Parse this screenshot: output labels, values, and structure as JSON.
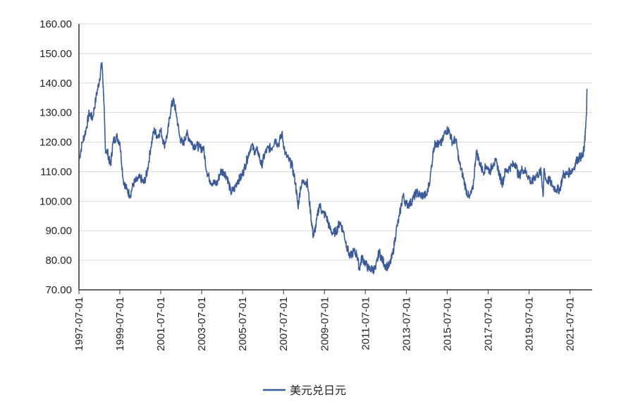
{
  "chart_data": {
    "type": "line",
    "xlabel": "",
    "ylabel": "",
    "ylim": [
      70,
      160
    ],
    "y_ticks": [
      "70.00",
      "80.00",
      "90.00",
      "100.00",
      "110.00",
      "120.00",
      "130.00",
      "140.00",
      "150.00",
      "160.00"
    ],
    "x_ticks": [
      "1997-07-01",
      "1999-07-01",
      "2001-07-01",
      "2003-07-01",
      "2005-07-01",
      "2007-07-01",
      "2009-07-01",
      "2011-07-01",
      "2013-07-01",
      "2015-07-01",
      "2017-07-01",
      "2019-07-01",
      "2021-07-01"
    ],
    "xlim": [
      "1997-07-01",
      "2022-05-01"
    ],
    "grid": "horizontal",
    "legend_position": "bottom",
    "series": [
      {
        "name": "美元兑日元",
        "color": "#3a5a9a",
        "points": [
          [
            "1997-07-01",
            114
          ],
          [
            "1997-09-01",
            120
          ],
          [
            "1997-11-01",
            124
          ],
          [
            "1998-01-01",
            130
          ],
          [
            "1998-03-01",
            128
          ],
          [
            "1998-05-01",
            135
          ],
          [
            "1998-07-01",
            141
          ],
          [
            "1998-08-15",
            147
          ],
          [
            "1998-09-15",
            136
          ],
          [
            "1998-10-15",
            118
          ],
          [
            "1998-12-01",
            116
          ],
          [
            "1999-01-15",
            112
          ],
          [
            "1999-03-01",
            120
          ],
          [
            "1999-05-01",
            122
          ],
          [
            "1999-07-01",
            120
          ],
          [
            "1999-09-01",
            107
          ],
          [
            "1999-11-01",
            104
          ],
          [
            "2000-01-01",
            102
          ],
          [
            "2000-03-01",
            106
          ],
          [
            "2000-05-01",
            107
          ],
          [
            "2000-07-01",
            108
          ],
          [
            "2000-09-01",
            106
          ],
          [
            "2000-11-01",
            110
          ],
          [
            "2001-01-01",
            118
          ],
          [
            "2001-03-01",
            124
          ],
          [
            "2001-05-01",
            122
          ],
          [
            "2001-07-01",
            124
          ],
          [
            "2001-09-01",
            119
          ],
          [
            "2001-11-01",
            123
          ],
          [
            "2002-01-01",
            132
          ],
          [
            "2002-02-15",
            134
          ],
          [
            "2002-04-01",
            130
          ],
          [
            "2002-06-01",
            122
          ],
          [
            "2002-08-01",
            119
          ],
          [
            "2002-10-01",
            123
          ],
          [
            "2002-12-01",
            121
          ],
          [
            "2003-02-01",
            119
          ],
          [
            "2003-04-01",
            119
          ],
          [
            "2003-06-01",
            118
          ],
          [
            "2003-08-01",
            118
          ],
          [
            "2003-10-01",
            110
          ],
          [
            "2003-12-01",
            107
          ],
          [
            "2004-02-01",
            106
          ],
          [
            "2004-04-01",
            106
          ],
          [
            "2004-06-01",
            110
          ],
          [
            "2004-08-01",
            110
          ],
          [
            "2004-10-01",
            108
          ],
          [
            "2004-12-01",
            103
          ],
          [
            "2005-02-01",
            104
          ],
          [
            "2005-04-01",
            107
          ],
          [
            "2005-06-01",
            108
          ],
          [
            "2005-08-01",
            111
          ],
          [
            "2005-10-01",
            115
          ],
          [
            "2005-12-01",
            119
          ],
          [
            "2006-02-01",
            117
          ],
          [
            "2006-04-01",
            117
          ],
          [
            "2006-06-01",
            112
          ],
          [
            "2006-08-01",
            116
          ],
          [
            "2006-10-01",
            118
          ],
          [
            "2006-12-01",
            118
          ],
          [
            "2007-02-01",
            121
          ],
          [
            "2007-04-01",
            119
          ],
          [
            "2007-06-01",
            123
          ],
          [
            "2007-08-01",
            116
          ],
          [
            "2007-10-01",
            114
          ],
          [
            "2007-12-01",
            112
          ],
          [
            "2008-02-01",
            106
          ],
          [
            "2008-03-15",
            98
          ],
          [
            "2008-05-01",
            105
          ],
          [
            "2008-07-01",
            107
          ],
          [
            "2008-09-01",
            106
          ],
          [
            "2008-11-01",
            95
          ],
          [
            "2008-12-15",
            88
          ],
          [
            "2009-02-01",
            92
          ],
          [
            "2009-04-01",
            99
          ],
          [
            "2009-06-01",
            96
          ],
          [
            "2009-08-01",
            95
          ],
          [
            "2009-10-01",
            91
          ],
          [
            "2009-12-01",
            89
          ],
          [
            "2010-02-01",
            90
          ],
          [
            "2010-04-01",
            93
          ],
          [
            "2010-06-01",
            90
          ],
          [
            "2010-08-01",
            85
          ],
          [
            "2010-10-01",
            81
          ],
          [
            "2010-12-01",
            83
          ],
          [
            "2011-02-01",
            82
          ],
          [
            "2011-03-15",
            77
          ],
          [
            "2011-05-01",
            81
          ],
          [
            "2011-07-01",
            79
          ],
          [
            "2011-09-01",
            77
          ],
          [
            "2011-11-01",
            77
          ],
          [
            "2012-01-01",
            77
          ],
          [
            "2012-03-01",
            83
          ],
          [
            "2012-05-01",
            80
          ],
          [
            "2012-07-01",
            78
          ],
          [
            "2012-09-01",
            78
          ],
          [
            "2012-11-01",
            82
          ],
          [
            "2013-01-01",
            90
          ],
          [
            "2013-03-01",
            95
          ],
          [
            "2013-05-01",
            102
          ],
          [
            "2013-07-01",
            99
          ],
          [
            "2013-09-01",
            99
          ],
          [
            "2013-11-01",
            101
          ],
          [
            "2014-01-01",
            103
          ],
          [
            "2014-03-01",
            102
          ],
          [
            "2014-05-01",
            102
          ],
          [
            "2014-07-01",
            102
          ],
          [
            "2014-09-01",
            108
          ],
          [
            "2014-11-01",
            118
          ],
          [
            "2014-12-15",
            120
          ],
          [
            "2015-02-01",
            119
          ],
          [
            "2015-04-01",
            120
          ],
          [
            "2015-06-01",
            124
          ],
          [
            "2015-08-01",
            124
          ],
          [
            "2015-10-01",
            120
          ],
          [
            "2015-12-01",
            121
          ],
          [
            "2016-02-01",
            113
          ],
          [
            "2016-04-01",
            109
          ],
          [
            "2016-06-01",
            104
          ],
          [
            "2016-08-01",
            101
          ],
          [
            "2016-10-01",
            104
          ],
          [
            "2016-12-01",
            117
          ],
          [
            "2017-02-01",
            113
          ],
          [
            "2017-04-01",
            110
          ],
          [
            "2017-06-01",
            112
          ],
          [
            "2017-08-01",
            110
          ],
          [
            "2017-10-01",
            113
          ],
          [
            "2017-12-01",
            113
          ],
          [
            "2018-02-01",
            108
          ],
          [
            "2018-03-15",
            106
          ],
          [
            "2018-05-01",
            110
          ],
          [
            "2018-07-01",
            111
          ],
          [
            "2018-09-01",
            112
          ],
          [
            "2018-11-01",
            113
          ],
          [
            "2019-01-01",
            108
          ],
          [
            "2019-03-01",
            111
          ],
          [
            "2019-05-01",
            110
          ],
          [
            "2019-07-01",
            108
          ],
          [
            "2019-08-15",
            106
          ],
          [
            "2019-10-01",
            108
          ],
          [
            "2019-12-01",
            109
          ],
          [
            "2020-02-01",
            110
          ],
          [
            "2020-03-10",
            102
          ],
          [
            "2020-03-25",
            111
          ],
          [
            "2020-05-01",
            107
          ],
          [
            "2020-07-01",
            107
          ],
          [
            "2020-09-01",
            105
          ],
          [
            "2020-11-01",
            104
          ],
          [
            "2021-01-01",
            104
          ],
          [
            "2021-03-01",
            109
          ],
          [
            "2021-05-01",
            109
          ],
          [
            "2021-07-01",
            110
          ],
          [
            "2021-09-01",
            111
          ],
          [
            "2021-11-01",
            114
          ],
          [
            "2022-01-01",
            115
          ],
          [
            "2022-02-15",
            115
          ],
          [
            "2022-03-15",
            119
          ],
          [
            "2022-04-01",
            123
          ],
          [
            "2022-04-20",
            129
          ],
          [
            "2022-05-01",
            138
          ]
        ]
      }
    ]
  }
}
